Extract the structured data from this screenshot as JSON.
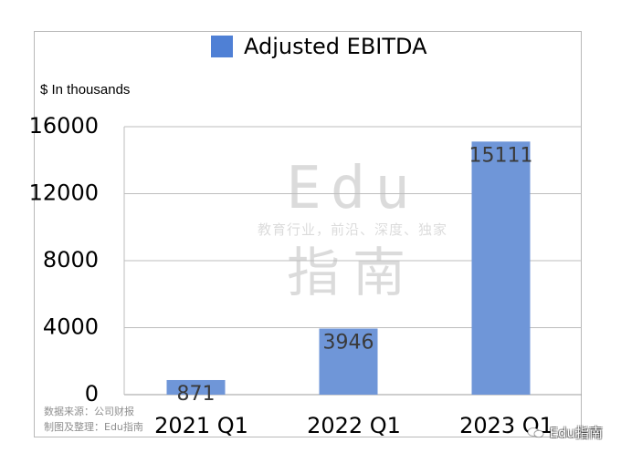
{
  "chart_data": {
    "type": "bar",
    "title": "",
    "legend": [
      "Adjusted EBITDA"
    ],
    "legend_position": "top",
    "ylabel": "$ In thousands",
    "xlabel": "",
    "categories": [
      "2021 Q1",
      "2022 Q1",
      "2023 Q1"
    ],
    "series": [
      {
        "name": "Adjusted EBITDA",
        "values": [
          871,
          3946,
          15111
        ],
        "color": "#6f96d8"
      }
    ],
    "ylim": [
      0,
      16000
    ],
    "yticks": [
      0,
      4000,
      8000,
      12000,
      16000
    ],
    "grid": true
  },
  "watermark": {
    "logo": "Edu",
    "tagline": "教育行业，前沿、深度、独家",
    "name": "指南"
  },
  "source": {
    "line1": "数据来源：公司财报",
    "line2": "制图及整理：Edu指南"
  },
  "account": {
    "name": "Edu指南",
    "icon": "wechat-icon"
  }
}
